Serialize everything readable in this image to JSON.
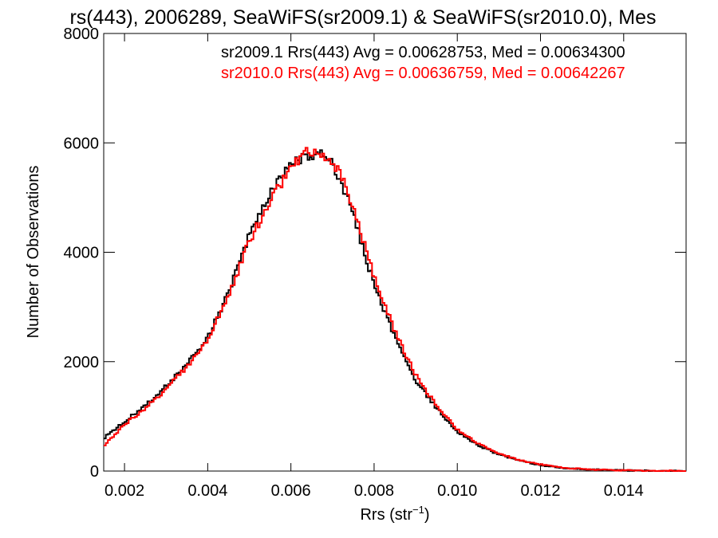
{
  "chart_data": {
    "type": "line",
    "title": "rs(443), 2006289, SeaWiFS(sr2009.1) & SeaWiFS(sr2010.0), Mes",
    "xlabel_main": "Rrs (str",
    "xlabel_sup": "−1",
    "xlabel_close": ")",
    "ylabel": "Number of Observations",
    "xlim": [
      0.0015,
      0.0155
    ],
    "ylim": [
      0,
      8000
    ],
    "xticks": [
      0.002,
      0.004,
      0.006,
      0.008,
      0.01,
      0.012,
      0.014
    ],
    "xtick_labels": [
      "0.002",
      "0.004",
      "0.006",
      "0.008",
      "0.010",
      "0.012",
      "0.014"
    ],
    "yticks": [
      0,
      2000,
      4000,
      6000,
      8000
    ],
    "ytick_labels": [
      "0",
      "2000",
      "4000",
      "6000",
      "8000"
    ],
    "grid": false,
    "legend_placement": "top-right",
    "series": [
      {
        "name": "sr2009.1 Rrs(443) Avg = 0.00628753, Med = 0.00634300",
        "color": "#000000",
        "x": [
          0.0015,
          0.002,
          0.0025,
          0.003,
          0.0035,
          0.004,
          0.0045,
          0.005,
          0.0055,
          0.0058,
          0.006,
          0.0062,
          0.0064,
          0.0066,
          0.0068,
          0.007,
          0.0072,
          0.0075,
          0.008,
          0.0085,
          0.009,
          0.0095,
          0.01,
          0.0105,
          0.011,
          0.0115,
          0.012,
          0.0125,
          0.013,
          0.0135,
          0.014,
          0.0145,
          0.015,
          0.0155
        ],
        "y": [
          600,
          900,
          1200,
          1550,
          1950,
          2450,
          3250,
          4300,
          5050,
          5400,
          5600,
          5700,
          5750,
          5800,
          5780,
          5600,
          5300,
          4700,
          3400,
          2450,
          1650,
          1150,
          720,
          470,
          300,
          190,
          110,
          60,
          35,
          20,
          12,
          8,
          5,
          3
        ]
      },
      {
        "name": "sr2010.0 Rrs(443) Avg = 0.00636759, Med = 0.00642267",
        "color": "#ff0000",
        "x": [
          0.0015,
          0.002,
          0.0025,
          0.003,
          0.0035,
          0.004,
          0.0045,
          0.005,
          0.0055,
          0.0058,
          0.006,
          0.0062,
          0.0064,
          0.0066,
          0.0068,
          0.007,
          0.0072,
          0.0075,
          0.008,
          0.0085,
          0.009,
          0.0095,
          0.01,
          0.0105,
          0.011,
          0.0115,
          0.012,
          0.0125,
          0.013,
          0.0135,
          0.014,
          0.0145,
          0.015,
          0.0155
        ],
        "y": [
          450,
          850,
          1150,
          1500,
          1900,
          2400,
          3200,
          4200,
          4950,
          5300,
          5550,
          5700,
          5850,
          5800,
          5750,
          5650,
          5400,
          4850,
          3550,
          2550,
          1750,
          1200,
          760,
          500,
          320,
          200,
          120,
          65,
          38,
          22,
          13,
          8,
          5,
          3
        ]
      }
    ]
  }
}
